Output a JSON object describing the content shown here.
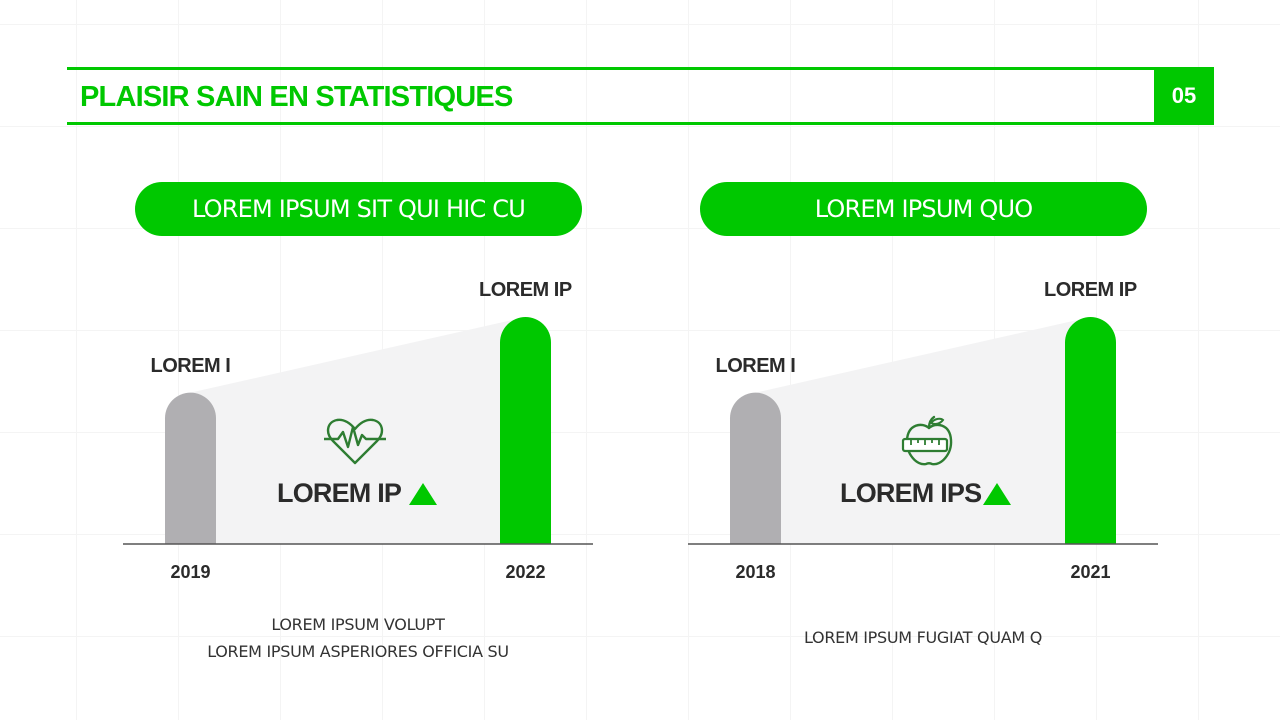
{
  "header": {
    "title": "PLAISIR SAIN EN STATISTIQUES",
    "page_number": "05"
  },
  "colors": {
    "accent": "#00c800",
    "muted_bar": "#b0afb2",
    "text": "#2b2b2b"
  },
  "panels": [
    {
      "pill_label": "LOREM IPSUM SIT QUI HIC CU",
      "icon": "heartbeat-icon",
      "center_label": "LOREM IP",
      "trend": "up",
      "captions": [
        "LOREM IPSUM VOLUPT",
        "LOREM IPSUM ASPERIORES OFFICIA SU"
      ]
    },
    {
      "pill_label": "LOREM IPSUM QUO",
      "icon": "apple-measuring-tape-icon",
      "center_label": "LOREM IPS",
      "trend": "up",
      "captions": [
        "LOREM IPSUM FUGIAT QUAM Q"
      ]
    }
  ],
  "chart_data": [
    {
      "type": "bar",
      "categories": [
        "2019",
        "2022"
      ],
      "values": [
        1,
        1.5
      ],
      "bar_labels": [
        "LOREM I",
        "LOREM IP"
      ],
      "ylim": [
        0,
        1.5
      ]
    },
    {
      "type": "bar",
      "categories": [
        "2018",
        "2021"
      ],
      "values": [
        1,
        1.5
      ],
      "bar_labels": [
        "LOREM I",
        "LOREM IP"
      ],
      "ylim": [
        0,
        1.5
      ]
    }
  ]
}
